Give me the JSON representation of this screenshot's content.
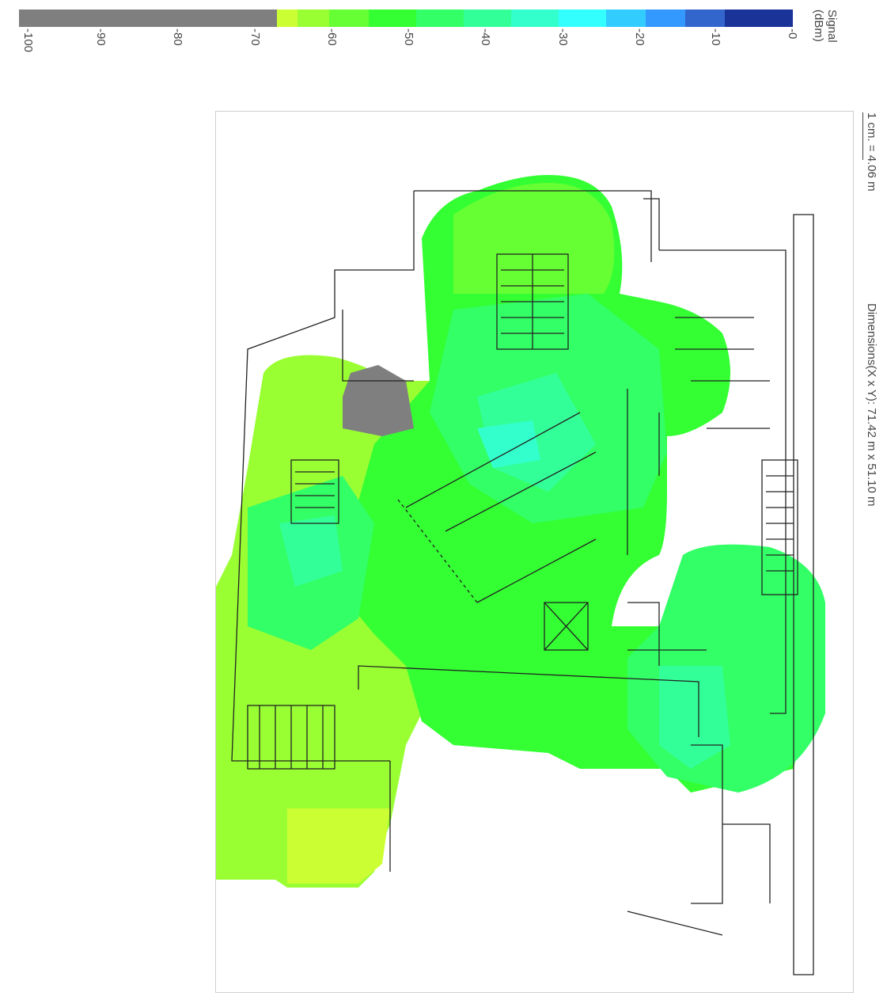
{
  "legend": {
    "title_line1": "Signal",
    "title_line2": "(dBm)",
    "ticks": [
      "-100",
      "-90",
      "-80",
      "-70",
      "-60",
      "-50",
      "-40",
      "-30",
      "-20",
      "-10",
      "-0"
    ],
    "colors": {
      "no_signal": "#7f7f7f",
      "c1": "#ccff33",
      "c2": "#99ff33",
      "c3": "#66ff33",
      "c4": "#33ff33",
      "c5": "#33ff66",
      "c6": "#33ff99",
      "c7": "#33ffcc",
      "c8": "#33ffff",
      "c9": "#33ccff",
      "c10": "#3399ff",
      "c11": "#3366cc",
      "c12": "#1a3399"
    }
  },
  "map": {
    "scale_text": "1 cm. = 4.06 m",
    "dimensions_text": "Dimensions(X x Y): 71.42 m x 51.10 m"
  }
}
